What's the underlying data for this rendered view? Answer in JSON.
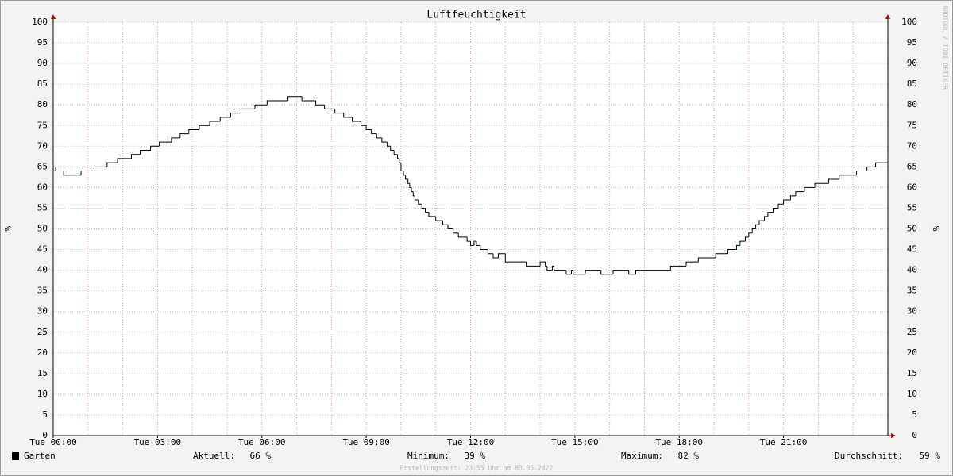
{
  "chart_data": {
    "type": "line",
    "step": true,
    "title": "Luftfeuchtigkeit",
    "ylabel": "%",
    "watermark": "RRDTOOL / TOBI OETIKER",
    "footer": "Erstellungszeit: 23:55 Uhr am 03.05.2022",
    "xlim": [
      0,
      24
    ],
    "xticks": [
      {
        "value": 0,
        "label": "Tue 00:00"
      },
      {
        "value": 3,
        "label": "Tue 03:00"
      },
      {
        "value": 6,
        "label": "Tue 06:00"
      },
      {
        "value": 9,
        "label": "Tue 09:00"
      },
      {
        "value": 12,
        "label": "Tue 12:00"
      },
      {
        "value": 15,
        "label": "Tue 15:00"
      },
      {
        "value": 18,
        "label": "Tue 18:00"
      },
      {
        "value": 21,
        "label": "Tue 21:00"
      }
    ],
    "xminorticks": [
      0,
      1,
      2,
      3,
      4,
      5,
      6,
      7,
      8,
      9,
      10,
      11,
      12,
      13,
      14,
      15,
      16,
      17,
      18,
      19,
      20,
      21,
      22,
      23,
      24
    ],
    "ylim": [
      0,
      100
    ],
    "yticks": [
      0,
      5,
      10,
      15,
      20,
      25,
      30,
      35,
      40,
      45,
      50,
      55,
      60,
      65,
      70,
      75,
      80,
      85,
      90,
      95,
      100
    ],
    "grid": true,
    "series": [
      {
        "name": "Garten",
        "color": "#000000",
        "x": [
          0,
          0.07,
          0.3,
          0.8,
          1.2,
          1.55,
          1.85,
          2.25,
          2.5,
          2.8,
          3.05,
          3.4,
          3.65,
          3.9,
          4.2,
          4.5,
          4.8,
          5.1,
          5.4,
          5.8,
          6.15,
          6.75,
          7.15,
          7.55,
          7.8,
          8.1,
          8.35,
          8.6,
          8.85,
          9.0,
          9.15,
          9.3,
          9.45,
          9.6,
          9.7,
          9.8,
          9.9,
          9.95,
          10.0,
          10.07,
          10.13,
          10.2,
          10.25,
          10.3,
          10.35,
          10.4,
          10.5,
          10.6,
          10.7,
          10.8,
          11.0,
          11.2,
          11.35,
          11.5,
          11.65,
          11.9,
          12.0,
          12.1,
          12.17,
          12.28,
          12.5,
          12.65,
          12.8,
          13.0,
          13.6,
          14.0,
          14.15,
          14.2,
          14.35,
          14.4,
          14.75,
          14.9,
          14.95,
          15.3,
          15.75,
          16.1,
          16.55,
          16.75,
          17.75,
          18.2,
          18.55,
          19.05,
          19.4,
          19.65,
          19.75,
          19.9,
          20.0,
          20.1,
          20.2,
          20.3,
          20.45,
          20.55,
          20.7,
          20.85,
          21.0,
          21.2,
          21.35,
          21.6,
          21.9,
          22.3,
          22.6,
          23.1,
          23.4,
          23.65
        ],
        "values": [
          65,
          64,
          63,
          64,
          65,
          66,
          67,
          68,
          69,
          70,
          71,
          72,
          73,
          74,
          75,
          76,
          77,
          78,
          79,
          80,
          81,
          82,
          81,
          80,
          79,
          78,
          77,
          76,
          75,
          74,
          73,
          72,
          71,
          70,
          69,
          68,
          67,
          66,
          64,
          63,
          62,
          61,
          60,
          59,
          58,
          57,
          56,
          55,
          54,
          53,
          52,
          51,
          50,
          49,
          48,
          47,
          46,
          47,
          46,
          45,
          44,
          43,
          44,
          42,
          41,
          42,
          41,
          40,
          41,
          40,
          39,
          40,
          39,
          40,
          39,
          40,
          39,
          40,
          41,
          42,
          43,
          44,
          45,
          46,
          47,
          48,
          49,
          50,
          51,
          52,
          53,
          54,
          55,
          56,
          57,
          58,
          59,
          60,
          61,
          62,
          63,
          64,
          65,
          66
        ]
      }
    ],
    "stats": [
      {
        "label": "Aktuell:",
        "value": 66,
        "value_label": "66 %"
      },
      {
        "label": "Minimum:",
        "value": 39,
        "value_label": "39 %"
      },
      {
        "label": "Maximum:",
        "value": 82,
        "value_label": "82 %"
      },
      {
        "label": "Durchschnitt:",
        "value": 59,
        "value_label": "59 %"
      }
    ]
  }
}
